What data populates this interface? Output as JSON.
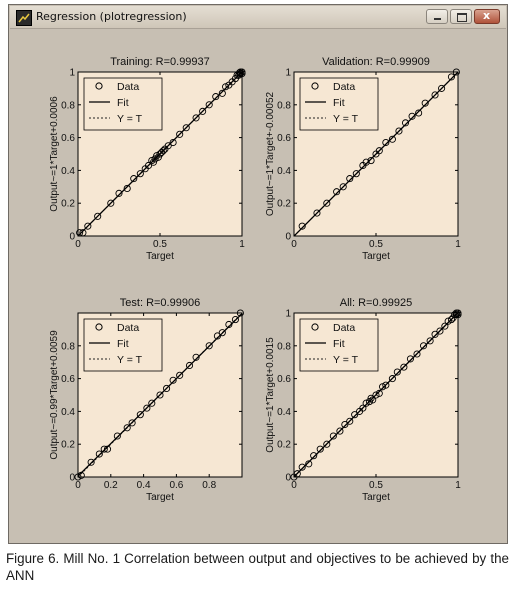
{
  "window": {
    "title": "Regression (plotregression)",
    "background": "#c7bfb3",
    "axes_background": "#f6e7d3"
  },
  "caption": "Figure 6. Mill No. 1 Correlation between output and objectives to be achieved by the ANN",
  "chart_data": [
    {
      "type": "scatter",
      "title": "Training: R=0.99937",
      "xlabel": "Target",
      "ylabel": "Output~=1*Target+0.0006",
      "xlim": [
        0,
        1
      ],
      "ylim": [
        0,
        1
      ],
      "xticks": [
        "0",
        "0.5",
        "1"
      ],
      "yticks": [
        "0",
        "0.2",
        "0.4",
        "0.6",
        "0.8",
        "1"
      ],
      "legend": [
        "Data",
        "Fit",
        "Y = T"
      ],
      "legend_position": "top-left",
      "fit": {
        "slope": 1,
        "intercept": 0.0006
      },
      "series": [
        {
          "name": "Data",
          "points": [
            [
              0.01,
              0.02
            ],
            [
              0.03,
              0.02
            ],
            [
              0.06,
              0.06
            ],
            [
              0.12,
              0.12
            ],
            [
              0.2,
              0.2
            ],
            [
              0.25,
              0.26
            ],
            [
              0.3,
              0.29
            ],
            [
              0.34,
              0.35
            ],
            [
              0.38,
              0.38
            ],
            [
              0.41,
              0.41
            ],
            [
              0.43,
              0.43
            ],
            [
              0.45,
              0.46
            ],
            [
              0.46,
              0.45
            ],
            [
              0.47,
              0.47
            ],
            [
              0.48,
              0.49
            ],
            [
              0.49,
              0.48
            ],
            [
              0.5,
              0.5
            ],
            [
              0.51,
              0.51
            ],
            [
              0.52,
              0.52
            ],
            [
              0.53,
              0.53
            ],
            [
              0.55,
              0.55
            ],
            [
              0.58,
              0.57
            ],
            [
              0.62,
              0.62
            ],
            [
              0.66,
              0.66
            ],
            [
              0.72,
              0.72
            ],
            [
              0.76,
              0.76
            ],
            [
              0.8,
              0.8
            ],
            [
              0.84,
              0.85
            ],
            [
              0.88,
              0.87
            ],
            [
              0.9,
              0.91
            ],
            [
              0.92,
              0.92
            ],
            [
              0.94,
              0.94
            ],
            [
              0.96,
              0.96
            ],
            [
              0.97,
              0.98
            ],
            [
              0.98,
              0.98
            ],
            [
              0.99,
              0.99
            ],
            [
              1.0,
              1.0
            ],
            [
              1.0,
              0.99
            ],
            [
              0.99,
              1.0
            ],
            [
              0.985,
              0.995
            ]
          ]
        }
      ]
    },
    {
      "type": "scatter",
      "title": "Validation: R=0.99909",
      "xlabel": "Target",
      "ylabel": "Output~=1*Target+-0.00052",
      "xlim": [
        0,
        1
      ],
      "ylim": [
        0,
        1
      ],
      "xticks": [
        "0",
        "0.5",
        "1"
      ],
      "yticks": [
        "0",
        "0.2",
        "0.4",
        "0.6",
        "0.8",
        "1"
      ],
      "legend": [
        "Data",
        "Fit",
        "Y = T"
      ],
      "legend_position": "top-left",
      "fit": {
        "slope": 1,
        "intercept": -0.00052
      },
      "series": [
        {
          "name": "Data",
          "points": [
            [
              0.05,
              0.06
            ],
            [
              0.14,
              0.14
            ],
            [
              0.2,
              0.2
            ],
            [
              0.26,
              0.27
            ],
            [
              0.3,
              0.3
            ],
            [
              0.34,
              0.35
            ],
            [
              0.38,
              0.38
            ],
            [
              0.42,
              0.43
            ],
            [
              0.44,
              0.45
            ],
            [
              0.47,
              0.46
            ],
            [
              0.5,
              0.5
            ],
            [
              0.52,
              0.52
            ],
            [
              0.56,
              0.57
            ],
            [
              0.6,
              0.59
            ],
            [
              0.64,
              0.64
            ],
            [
              0.68,
              0.69
            ],
            [
              0.72,
              0.73
            ],
            [
              0.76,
              0.75
            ],
            [
              0.8,
              0.81
            ],
            [
              0.86,
              0.86
            ],
            [
              0.9,
              0.9
            ],
            [
              0.96,
              0.97
            ],
            [
              0.99,
              1.0
            ]
          ]
        }
      ]
    },
    {
      "type": "scatter",
      "title": "Test: R=0.99906",
      "xlabel": "Target",
      "ylabel": "Output~=0.99*Target+0.0059",
      "xlim": [
        0,
        1
      ],
      "ylim": [
        0,
        1
      ],
      "xticks": [
        "0",
        "0.2",
        "0.4",
        "0.6",
        "0.8"
      ],
      "yticks": [
        "0",
        "0.2",
        "0.4",
        "0.6",
        "0.8"
      ],
      "legend": [
        "Data",
        "Fit",
        "Y = T"
      ],
      "legend_position": "top-left",
      "fit": {
        "slope": 0.99,
        "intercept": 0.0059
      },
      "series": [
        {
          "name": "Data",
          "points": [
            [
              0.0,
              0.0
            ],
            [
              0.02,
              0.01
            ],
            [
              0.08,
              0.09
            ],
            [
              0.13,
              0.14
            ],
            [
              0.16,
              0.17
            ],
            [
              0.18,
              0.17
            ],
            [
              0.24,
              0.25
            ],
            [
              0.3,
              0.3
            ],
            [
              0.33,
              0.33
            ],
            [
              0.38,
              0.38
            ],
            [
              0.42,
              0.42
            ],
            [
              0.45,
              0.45
            ],
            [
              0.5,
              0.5
            ],
            [
              0.54,
              0.54
            ],
            [
              0.58,
              0.59
            ],
            [
              0.62,
              0.62
            ],
            [
              0.68,
              0.68
            ],
            [
              0.72,
              0.73
            ],
            [
              0.8,
              0.8
            ],
            [
              0.85,
              0.86
            ],
            [
              0.88,
              0.88
            ],
            [
              0.92,
              0.93
            ],
            [
              0.96,
              0.96
            ],
            [
              0.99,
              1.0
            ]
          ]
        }
      ]
    },
    {
      "type": "scatter",
      "title": "All: R=0.99925",
      "xlabel": "Target",
      "ylabel": "Output~=1*Target+0.0015",
      "xlim": [
        0,
        1
      ],
      "ylim": [
        0,
        1
      ],
      "xticks": [
        "0",
        "0.5",
        "1"
      ],
      "yticks": [
        "0",
        "0.2",
        "0.4",
        "0.6",
        "0.8",
        "1"
      ],
      "legend": [
        "Data",
        "Fit",
        "Y = T"
      ],
      "legend_position": "top-left",
      "fit": {
        "slope": 1,
        "intercept": 0.0015
      },
      "series": [
        {
          "name": "Data",
          "points": [
            [
              0.0,
              0.0
            ],
            [
              0.02,
              0.02
            ],
            [
              0.05,
              0.06
            ],
            [
              0.09,
              0.08
            ],
            [
              0.12,
              0.13
            ],
            [
              0.16,
              0.17
            ],
            [
              0.2,
              0.2
            ],
            [
              0.24,
              0.25
            ],
            [
              0.28,
              0.28
            ],
            [
              0.31,
              0.32
            ],
            [
              0.34,
              0.34
            ],
            [
              0.37,
              0.38
            ],
            [
              0.4,
              0.4
            ],
            [
              0.42,
              0.42
            ],
            [
              0.44,
              0.45
            ],
            [
              0.46,
              0.46
            ],
            [
              0.47,
              0.48
            ],
            [
              0.48,
              0.47
            ],
            [
              0.5,
              0.5
            ],
            [
              0.52,
              0.51
            ],
            [
              0.54,
              0.55
            ],
            [
              0.56,
              0.56
            ],
            [
              0.6,
              0.6
            ],
            [
              0.63,
              0.64
            ],
            [
              0.67,
              0.67
            ],
            [
              0.71,
              0.72
            ],
            [
              0.75,
              0.75
            ],
            [
              0.79,
              0.8
            ],
            [
              0.83,
              0.83
            ],
            [
              0.86,
              0.87
            ],
            [
              0.89,
              0.89
            ],
            [
              0.92,
              0.92
            ],
            [
              0.94,
              0.95
            ],
            [
              0.96,
              0.96
            ],
            [
              0.97,
              0.97
            ],
            [
              0.98,
              0.99
            ],
            [
              0.99,
              0.99
            ],
            [
              1.0,
              1.0
            ],
            [
              0.99,
              1.0
            ],
            [
              1.0,
              0.99
            ]
          ]
        }
      ]
    }
  ]
}
